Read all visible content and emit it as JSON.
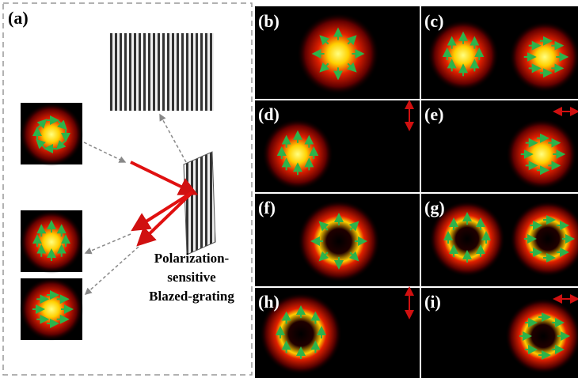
{
  "panels": [
    "(a)",
    "(b)",
    "(c)",
    "(d)",
    "(e)",
    "(f)",
    "(g)",
    "(h)",
    "(i)"
  ],
  "grating_label": [
    "Polarization-",
    "sensitive",
    "Blazed-grating"
  ]
}
